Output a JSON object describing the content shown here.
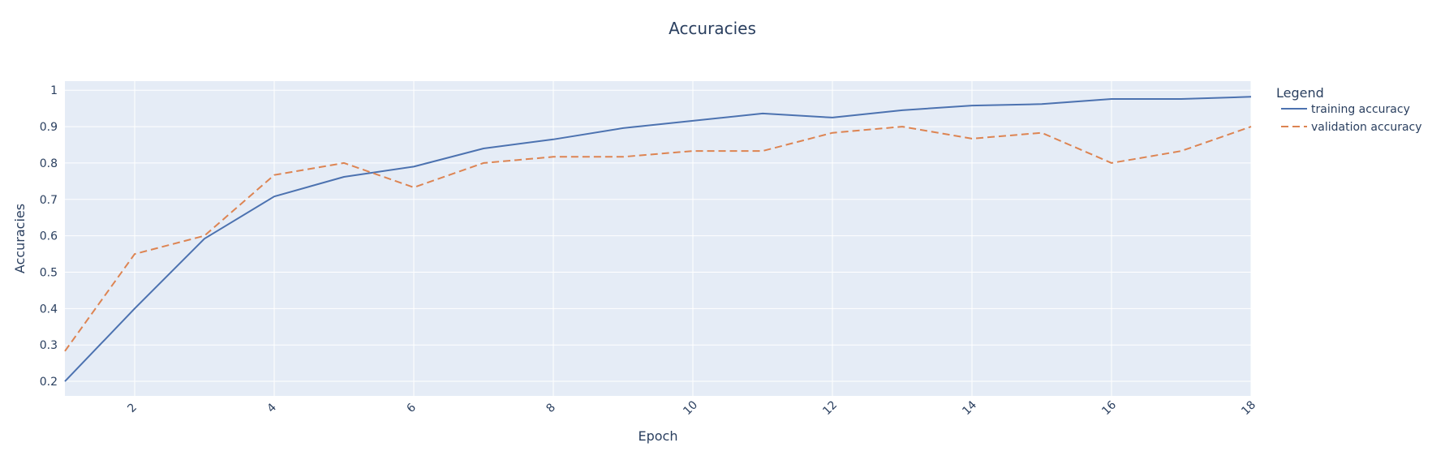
{
  "chart_data": {
    "type": "line",
    "title": "Accuracies",
    "xlabel": "Epoch",
    "ylabel": "Accuracies",
    "xlim": [
      1,
      18
    ],
    "ylim": [
      0.16,
      1.025
    ],
    "x_ticks": [
      2,
      4,
      6,
      8,
      10,
      12,
      14,
      16,
      18
    ],
    "y_ticks": [
      0.2,
      0.3,
      0.4,
      0.5,
      0.6,
      0.7,
      0.8,
      0.9,
      1
    ],
    "x_tick_angle": -45,
    "grid": true,
    "background": "#e5ecf6",
    "legend": {
      "title": "Legend",
      "position": "right"
    },
    "x": [
      1,
      2,
      3,
      4,
      5,
      6,
      7,
      8,
      9,
      10,
      11,
      12,
      13,
      14,
      15,
      16,
      17,
      18
    ],
    "series": [
      {
        "name": "training accuracy",
        "color": "#4c72b0",
        "dash": "solid",
        "values": [
          0.2,
          0.4,
          0.592,
          0.708,
          0.762,
          0.79,
          0.84,
          0.865,
          0.896,
          0.916,
          0.936,
          0.925,
          0.945,
          0.958,
          0.962,
          0.976,
          0.976,
          0.982
        ]
      },
      {
        "name": "validation accuracy",
        "color": "#dd8452",
        "dash": "dash",
        "values": [
          0.283,
          0.55,
          0.6,
          0.767,
          0.8,
          0.733,
          0.8,
          0.817,
          0.817,
          0.833,
          0.833,
          0.883,
          0.9,
          0.867,
          0.883,
          0.8,
          0.833,
          0.9
        ]
      }
    ]
  }
}
